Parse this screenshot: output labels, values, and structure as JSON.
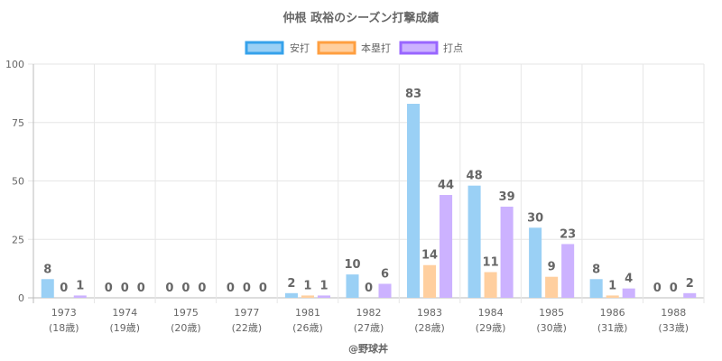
{
  "chart_data": {
    "type": "bar",
    "title": "仲根 政裕のシーズン打撃成績",
    "categories": [
      "1973",
      "1974",
      "1975",
      "1977",
      "1981",
      "1982",
      "1983",
      "1984",
      "1985",
      "1986",
      "1988"
    ],
    "age_labels": [
      "(18歳)",
      "(19歳)",
      "(20歳)",
      "(22歳)",
      "(26歳)",
      "(27歳)",
      "(28歳)",
      "(29歳)",
      "(30歳)",
      "(31歳)",
      "(33歳)"
    ],
    "series": [
      {
        "name": "安打",
        "values": [
          8,
          0,
          0,
          0,
          2,
          10,
          83,
          48,
          30,
          8,
          0
        ],
        "fill": "#9ad0f5",
        "stroke": "#36a2eb"
      },
      {
        "name": "本塁打",
        "values": [
          0,
          0,
          0,
          0,
          1,
          0,
          14,
          11,
          9,
          1,
          0
        ],
        "fill": "#ffcf9f",
        "stroke": "#ff9f40"
      },
      {
        "name": "打点",
        "values": [
          1,
          0,
          0,
          0,
          1,
          6,
          44,
          39,
          23,
          4,
          2
        ],
        "fill": "#ccb2ff",
        "stroke": "#9966ff"
      }
    ],
    "ylim": [
      0,
      100
    ],
    "yticks": [
      0,
      25,
      50,
      75,
      100
    ],
    "xlabel": "",
    "ylabel": "",
    "grid": true,
    "legend": "top-center",
    "credit": "@野球丼"
  }
}
